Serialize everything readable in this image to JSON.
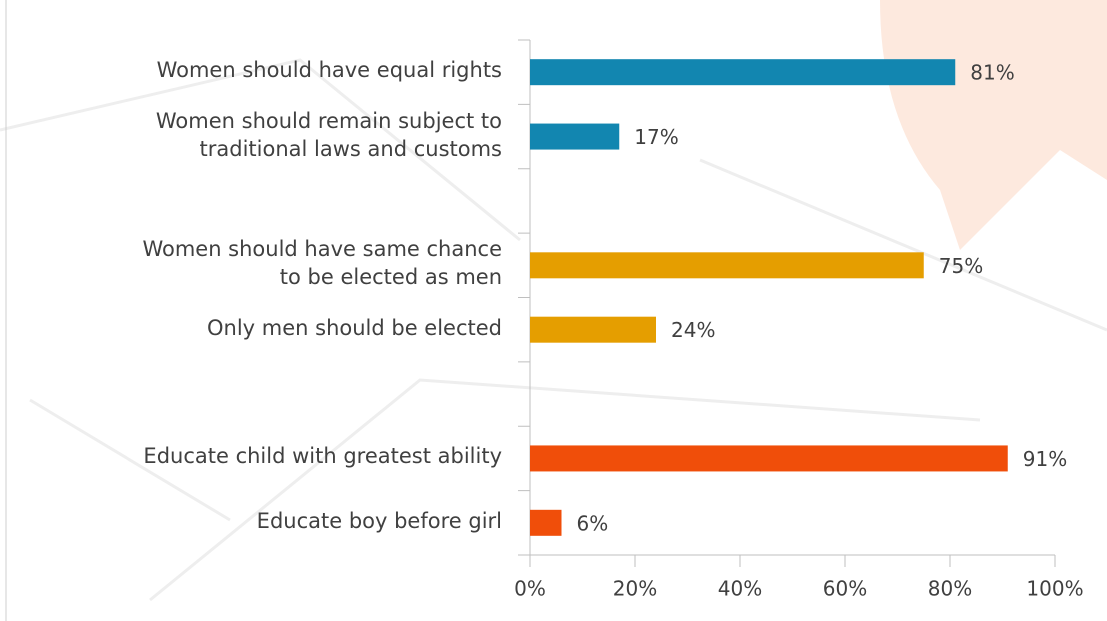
{
  "chart_data": {
    "type": "hbar",
    "categories": [
      "Women should have equal rights",
      "Women should remain subject to\ntraditional laws and customs",
      null,
      "Women should have same chance\nto be elected as men",
      "Only men should be elected",
      null,
      "Educate child with greatest ability",
      "Educate boy before girl"
    ],
    "values": [
      81,
      17,
      null,
      75,
      24,
      null,
      91,
      6
    ],
    "value_labels": [
      "81%",
      "17%",
      null,
      "75%",
      "24%",
      null,
      "91%",
      "6%"
    ],
    "colors": [
      "#1286b0",
      "#1286b0",
      null,
      "#e59e00",
      "#e59e00",
      null,
      "#f04e0a",
      "#f04e0a"
    ],
    "xlim": [
      0,
      100
    ],
    "xticks": [
      {
        "value": 0,
        "label": "0%"
      },
      {
        "value": 20,
        "label": "20%"
      },
      {
        "value": 40,
        "label": "40%"
      },
      {
        "value": 60,
        "label": "60%"
      },
      {
        "value": 80,
        "label": "80%"
      },
      {
        "value": 100,
        "label": "100%"
      }
    ]
  }
}
